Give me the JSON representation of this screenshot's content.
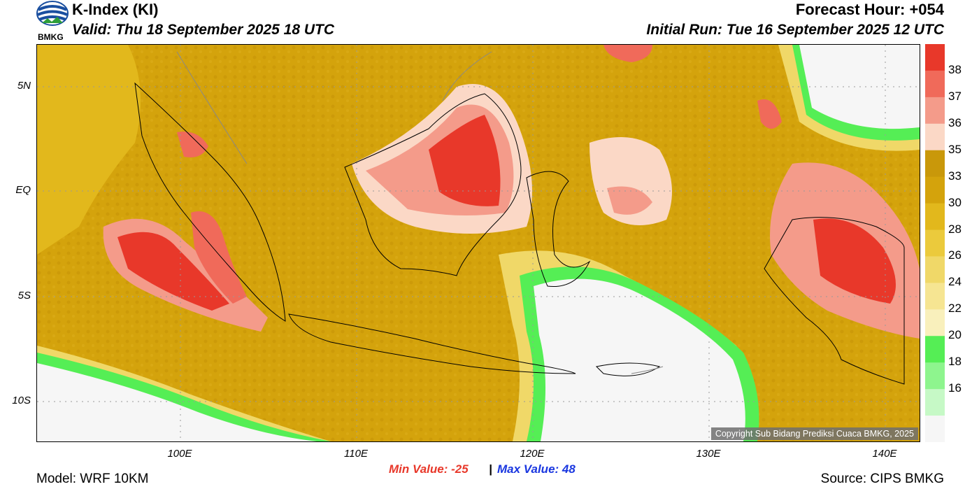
{
  "header": {
    "title": "K-Index (KI)",
    "valid": "Valid: Thu 18 September 2025 18 UTC",
    "forecast_hour": "Forecast Hour: +054",
    "initial_run": "Initial Run: Tue 16 September 2025 12 UTC",
    "logo_text": "BMKG"
  },
  "map": {
    "lat_labels": [
      "5N",
      "EQ",
      "5S",
      "10S"
    ],
    "lon_labels": [
      "100E",
      "110E",
      "120E",
      "130E",
      "140E"
    ],
    "copyright": "Copyright Sub Bidang Prediksi Cuaca BMKG, 2025"
  },
  "colorbar": {
    "labels": [
      "38",
      "37",
      "36",
      "35",
      "33",
      "30",
      "28",
      "26",
      "24",
      "22",
      "20",
      "18",
      "16"
    ],
    "colors": [
      "#e8382a",
      "#f06a5a",
      "#f49b8a",
      "#fbd8c6",
      "#c9980a",
      "#d4a30c",
      "#e2b81c",
      "#ebca3c",
      "#f0d868",
      "#f6e592",
      "#f9f0bc",
      "#55ee55",
      "#8ef58e",
      "#c6f9c6",
      "#f6f6f6"
    ]
  },
  "stats": {
    "min_label": "Min Value: -25",
    "separator": "|",
    "max_label": "Max Value:  48"
  },
  "footer": {
    "model": "Model: WRF 10KM",
    "source": "Source: CIPS BMKG"
  }
}
